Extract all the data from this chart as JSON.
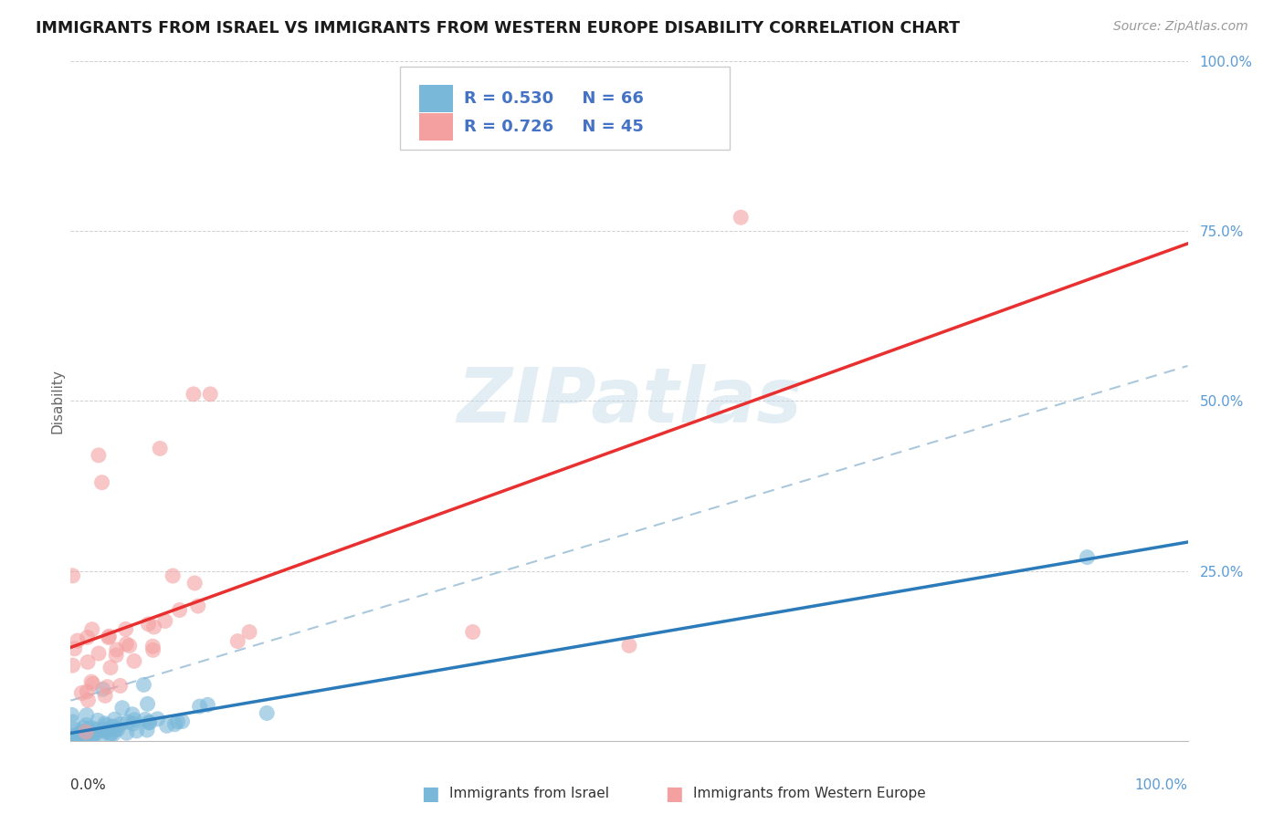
{
  "title": "IMMIGRANTS FROM ISRAEL VS IMMIGRANTS FROM WESTERN EUROPE DISABILITY CORRELATION CHART",
  "source": "Source: ZipAtlas.com",
  "ylabel": "Disability",
  "legend_r_israel": "R = 0.530",
  "legend_n_israel": "N = 66",
  "legend_r_west": "R = 0.726",
  "legend_n_west": "N = 45",
  "israel_color": "#7ab8d9",
  "western_color": "#f4a0a0",
  "israel_line_color": "#2b7bba",
  "western_line_color": "#e83030",
  "dashed_line_color": "#aac8dc",
  "background_color": "#ffffff",
  "watermark": "ZIPatlas",
  "grid_color": "#d0d0d0",
  "right_tick_color": "#5b9bd5",
  "legend_text_color": "#4472c4",
  "title_color": "#1a1a1a",
  "source_color": "#999999"
}
